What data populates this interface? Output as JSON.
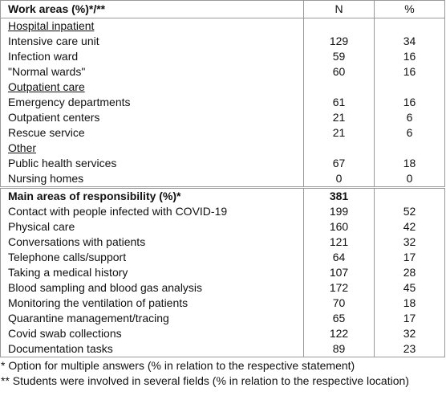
{
  "table": {
    "header": [
      "Work areas (%)*/**",
      "N",
      "%"
    ],
    "groups": [
      {
        "title": "Hospital inpatient",
        "rows": [
          [
            "Intensive care unit",
            129,
            34
          ],
          [
            "Infection ward",
            59,
            16
          ],
          [
            "\"Normal wards\"",
            60,
            16
          ]
        ]
      },
      {
        "title": "Outpatient care",
        "rows": [
          [
            "Emergency departments",
            61,
            16
          ],
          [
            "Outpatient centers",
            21,
            6
          ],
          [
            "Rescue service",
            21,
            6
          ]
        ]
      },
      {
        "title": "Other",
        "rows": [
          [
            "Public health services",
            67,
            18
          ],
          [
            "Nursing homes",
            0,
            0
          ]
        ]
      }
    ],
    "section2": {
      "header": [
        "Main areas of responsibility (%)*",
        381
      ],
      "rows": [
        [
          "Contact with people infected with COVID-19",
          199,
          52
        ],
        [
          "Physical care",
          160,
          42
        ],
        [
          "Conversations with patients",
          121,
          32
        ],
        [
          "Telephone calls/support",
          64,
          17
        ],
        [
          "Taking a medical history",
          107,
          28
        ],
        [
          "Blood sampling and blood gas analysis",
          172,
          45
        ],
        [
          "Monitoring the ventilation of patients",
          70,
          18
        ],
        [
          "Quarantine management/tracing",
          65,
          17
        ],
        [
          "Covid swab collections",
          122,
          32
        ],
        [
          "Documentation tasks",
          89,
          23
        ]
      ]
    }
  },
  "footnotes": [
    "* Option for multiple answers (% in relation to the respective statement)",
    "** Students were involved in several fields (% in relation to the respective location)"
  ]
}
